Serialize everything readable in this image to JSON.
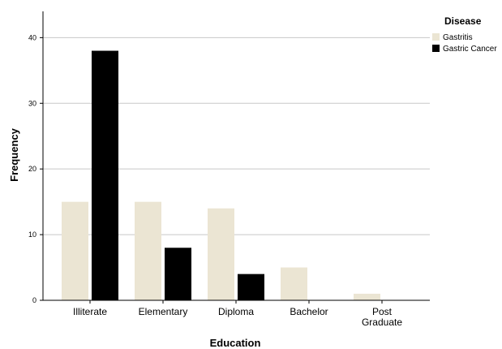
{
  "chart_data": {
    "type": "bar",
    "categories": [
      [
        "Illiterate"
      ],
      [
        "Elementary"
      ],
      [
        "Diploma"
      ],
      [
        "Bachelor"
      ],
      [
        "Post",
        "Graduate"
      ]
    ],
    "series": [
      {
        "name": "Gastritis",
        "values": [
          15,
          15,
          14,
          5,
          1
        ],
        "color": "#ebe5d3"
      },
      {
        "name": "Gastric Cancer",
        "values": [
          38,
          8,
          4,
          0,
          0
        ],
        "color": "#000000"
      }
    ],
    "xlabel": "Education",
    "ylabel": "Frequency",
    "ylim": [
      0,
      44
    ],
    "yticks": [
      0,
      10,
      20,
      30,
      40
    ],
    "grid": true,
    "legend": {
      "title": "Disease",
      "position": "top-right"
    }
  }
}
